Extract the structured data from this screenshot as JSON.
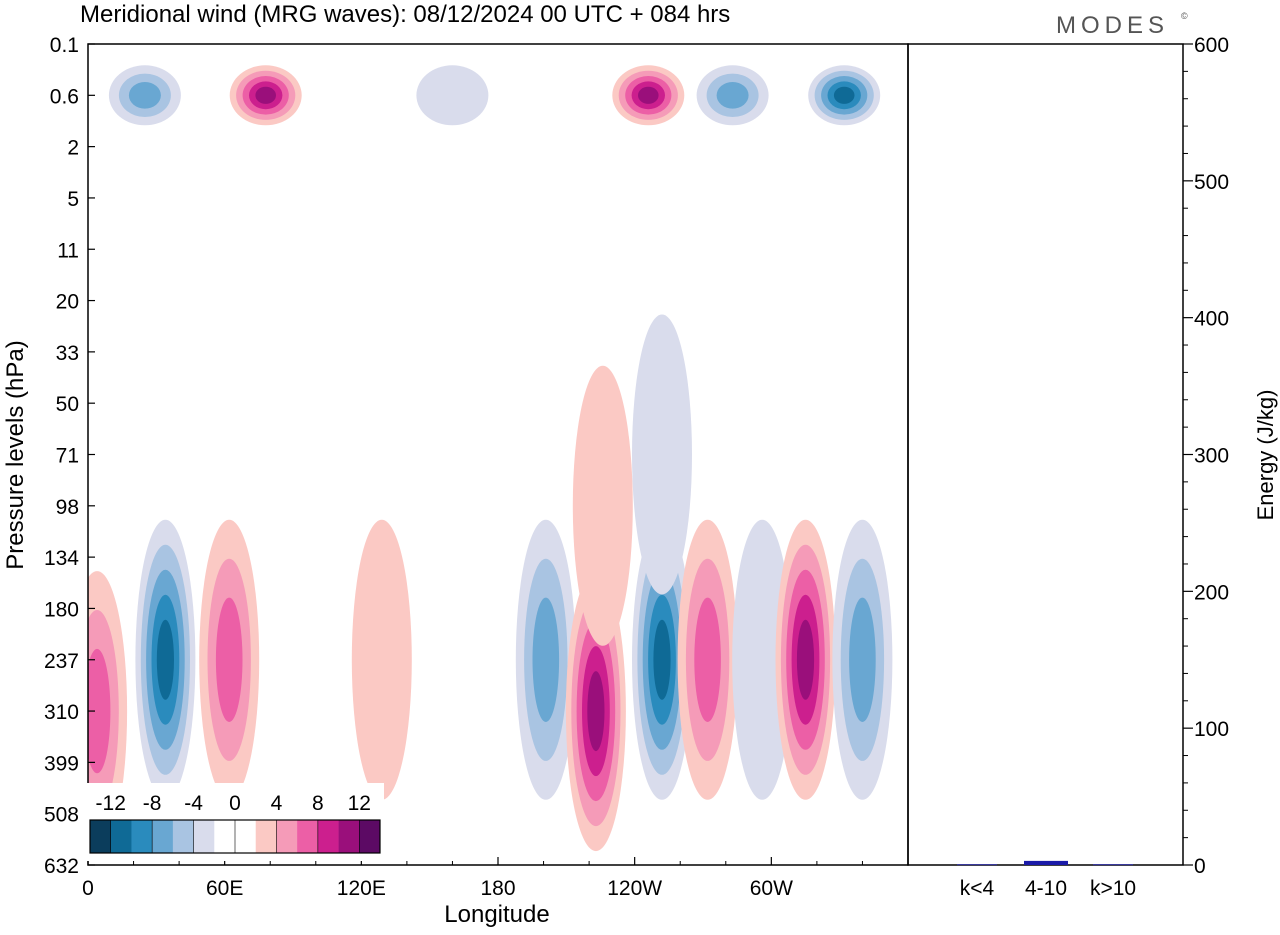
{
  "title": "Meridional wind (MRG waves):  08/12/2024  00 UTC  + 084 hrs",
  "brand": "MODES",
  "brand_mark": "©",
  "chart_data": [
    {
      "type": "heatmap",
      "title": "Meridional wind (MRG waves):  08/12/2024  00 UTC  + 084 hrs",
      "xlabel": "Longitude",
      "ylabel": "Pressure levels (hPa)",
      "x_ticks": [
        "0",
        "60E",
        "120E",
        "180",
        "120W",
        "60W"
      ],
      "y_ticks": [
        "0.1",
        "0.6",
        "2",
        "5",
        "11",
        "20",
        "33",
        "50",
        "71",
        "98",
        "134",
        "180",
        "237",
        "310",
        "399",
        "508",
        "632"
      ],
      "xlim": [
        0,
        360
      ],
      "colorbar": {
        "labels": [
          "-12",
          "-8",
          "-4",
          "0",
          "4",
          "8",
          "12"
        ],
        "colors": [
          "#0b3d5c",
          "#0f6a96",
          "#2a8bbd",
          "#69a7d2",
          "#a9c4e2",
          "#d9dcec",
          "#ffffff",
          "#ffffff",
          "#fbc9c4",
          "#f59bb8",
          "#ec5fa6",
          "#cc1f8e",
          "#9a0f7b",
          "#5c0a64"
        ]
      },
      "features": [
        {
          "lon": 4,
          "level": "310",
          "sign": "positive",
          "peak": 8
        },
        {
          "lon": 34,
          "level": "237",
          "sign": "negative",
          "peak": -12
        },
        {
          "lon": 62,
          "level": "237",
          "sign": "positive",
          "peak": 8
        },
        {
          "lon": 129,
          "level": "237",
          "sign": "positive",
          "peak": 4
        },
        {
          "lon": 201,
          "level": "237",
          "sign": "negative",
          "peak": -8
        },
        {
          "lon": 223,
          "level": "310",
          "sign": "positive",
          "peak": 12
        },
        {
          "lon": 252,
          "level": "237",
          "sign": "negative",
          "peak": -12
        },
        {
          "lon": 272,
          "level": "237",
          "sign": "positive",
          "peak": 8
        },
        {
          "lon": 296,
          "level": "237",
          "sign": "negative",
          "peak": -4
        },
        {
          "lon": 315,
          "level": "237",
          "sign": "positive",
          "peak": 12
        },
        {
          "lon": 340,
          "level": "237",
          "sign": "negative",
          "peak": -8
        },
        {
          "lon": 78,
          "level": "0.6",
          "sign": "positive",
          "peak": 12
        },
        {
          "lon": 246,
          "level": "0.6",
          "sign": "positive",
          "peak": 12
        },
        {
          "lon": 25,
          "level": "0.6",
          "sign": "negative",
          "peak": -8
        },
        {
          "lon": 160,
          "level": "0.6",
          "sign": "negative",
          "peak": -4
        },
        {
          "lon": 283,
          "level": "0.6",
          "sign": "negative",
          "peak": -8
        },
        {
          "lon": 332,
          "level": "0.6",
          "sign": "negative",
          "peak": -12
        },
        {
          "lon": 252,
          "level": "71",
          "sign": "negative",
          "peak": -4
        },
        {
          "lon": 226,
          "level": "98",
          "sign": "positive",
          "peak": 4
        }
      ]
    },
    {
      "type": "bar",
      "categories": [
        "k<4",
        "4-10",
        "k>10"
      ],
      "values": [
        0.5,
        3,
        0.5
      ],
      "ylabel": "Energy (J/kg)",
      "ylim": [
        0,
        600
      ],
      "y_ticks": [
        "0",
        "100",
        "200",
        "300",
        "400",
        "500",
        "600"
      ],
      "color": "#1a1aa8"
    }
  ]
}
